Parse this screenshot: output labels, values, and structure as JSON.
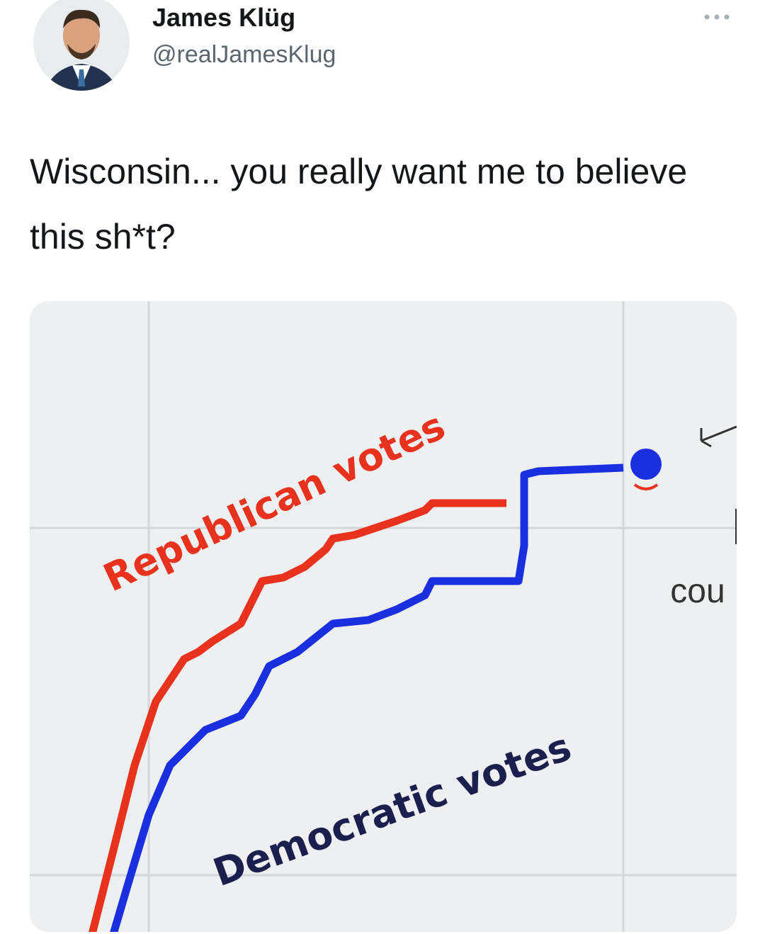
{
  "author": {
    "name": "James Klüg",
    "handle": "@realJamesKlug"
  },
  "tweet": {
    "text": "Wisconsin... you really want me to believe this sh*t?"
  },
  "image": {
    "republican_label": "Republican votes",
    "democratic_label": "Democratic votes",
    "cropped_label": "cou"
  }
}
